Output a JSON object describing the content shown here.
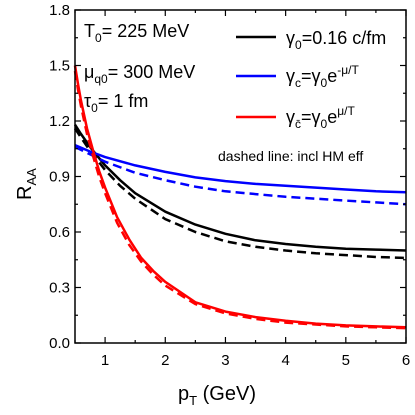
{
  "chart_data": {
    "type": "line",
    "xlabel": "p",
    "xlabel_sub": "T",
    "xlabel_unit": " (GeV)",
    "ylabel": "R",
    "ylabel_sub": "AA",
    "xlim": [
      0.5,
      6
    ],
    "ylim": [
      0.0,
      1.8
    ],
    "xticks": [
      1,
      2,
      3,
      4,
      5,
      6
    ],
    "xtick_labels": [
      "1",
      "2",
      "3",
      "4",
      "5",
      "6"
    ],
    "yticks": [
      0.0,
      0.3,
      0.6,
      0.9,
      1.2,
      1.5,
      1.8
    ],
    "ytick_labels": [
      "0.0",
      "0.3",
      "0.6",
      "0.9",
      "1.2",
      "1.5",
      "1.8"
    ],
    "grid": false,
    "legend_position": "top-right",
    "parameters": [
      {
        "main": "T",
        "sub": "0",
        "rest": "= 225 MeV"
      },
      {
        "main": "μ",
        "sub": "q0",
        "rest": "= 300 MeV"
      },
      {
        "main": "τ",
        "sub": "0",
        "rest": "= 1 fm"
      }
    ],
    "note": "dashed line: incl HM eff",
    "series": [
      {
        "name": "γ0=0.16 c/fm",
        "color": "#000000",
        "style": "solid",
        "x": [
          0.5,
          0.6,
          0.75,
          1.0,
          1.25,
          1.5,
          2.0,
          2.5,
          3.0,
          3.5,
          4.0,
          4.5,
          5.0,
          5.5,
          6.0
        ],
        "y": [
          1.18,
          1.13,
          1.06,
          0.96,
          0.88,
          0.81,
          0.71,
          0.64,
          0.59,
          0.555,
          0.535,
          0.52,
          0.51,
          0.505,
          0.5
        ]
      },
      {
        "name": "γ0=0.16 c/fm (incl HM eff)",
        "color": "#000000",
        "style": "dashed",
        "x": [
          0.5,
          0.6,
          0.75,
          1.0,
          1.25,
          1.5,
          2.0,
          2.5,
          3.0,
          3.5,
          4.0,
          4.5,
          5.0,
          5.5,
          6.0
        ],
        "y": [
          1.16,
          1.11,
          1.04,
          0.935,
          0.85,
          0.78,
          0.67,
          0.6,
          0.55,
          0.52,
          0.5,
          0.485,
          0.475,
          0.465,
          0.46
        ]
      },
      {
        "name": "γc=γ0e^-μ/T",
        "color": "#0000ff",
        "style": "solid",
        "x": [
          0.5,
          0.75,
          1.0,
          1.5,
          2.0,
          2.5,
          3.0,
          3.5,
          4.0,
          4.5,
          5.0,
          5.5,
          6.0
        ],
        "y": [
          1.07,
          1.035,
          1.005,
          0.96,
          0.925,
          0.895,
          0.875,
          0.86,
          0.85,
          0.84,
          0.83,
          0.82,
          0.815
        ]
      },
      {
        "name": "γc=γ0e^-μ/T (incl HM eff)",
        "color": "#0000ff",
        "style": "dashed",
        "x": [
          0.5,
          0.75,
          1.0,
          1.5,
          2.0,
          2.5,
          3.0,
          3.5,
          4.0,
          4.5,
          5.0,
          5.5,
          6.0
        ],
        "y": [
          1.06,
          1.02,
          0.98,
          0.92,
          0.88,
          0.845,
          0.82,
          0.805,
          0.79,
          0.78,
          0.77,
          0.76,
          0.75
        ]
      },
      {
        "name": "γc̄=γ0e^μ/T",
        "color": "#ff0000",
        "style": "solid",
        "x": [
          0.5,
          0.55,
          0.6,
          0.7,
          0.8,
          0.9,
          1.0,
          1.2,
          1.4,
          1.6,
          1.8,
          2.0,
          2.5,
          3.0,
          3.5,
          4.0,
          4.5,
          5.0,
          5.5,
          6.0
        ],
        "y": [
          1.5,
          1.4,
          1.31,
          1.16,
          1.04,
          0.93,
          0.84,
          0.68,
          0.56,
          0.46,
          0.39,
          0.33,
          0.22,
          0.17,
          0.14,
          0.12,
          0.105,
          0.095,
          0.09,
          0.085
        ]
      },
      {
        "name": "γc̄=γ0e^μ/T (incl HM eff)",
        "color": "#ff0000",
        "style": "dashed",
        "x": [
          0.5,
          0.55,
          0.6,
          0.7,
          0.8,
          0.9,
          1.0,
          1.2,
          1.4,
          1.6,
          1.8,
          2.0,
          2.5,
          3.0,
          3.5,
          4.0,
          4.5,
          5.0,
          5.5,
          6.0
        ],
        "y": [
          1.47,
          1.37,
          1.28,
          1.13,
          1.01,
          0.9,
          0.81,
          0.65,
          0.53,
          0.44,
          0.37,
          0.31,
          0.21,
          0.16,
          0.13,
          0.11,
          0.1,
          0.09,
          0.085,
          0.08
        ]
      }
    ],
    "legend": [
      {
        "color": "#000000",
        "sym": "γ",
        "sub": "0",
        "rest": "=0.16 c/fm",
        "sup": ""
      },
      {
        "color": "#0000ff",
        "sym": "γ",
        "sub": "c",
        "rest": "=γ",
        "sub2": "0",
        "rest2": "e",
        "sup": "-μ/T"
      },
      {
        "color": "#ff0000",
        "sym": "γ",
        "sub": "c̄",
        "rest": "=γ",
        "sub2": "0",
        "rest2": "e",
        "sup": "μ/T"
      }
    ]
  }
}
